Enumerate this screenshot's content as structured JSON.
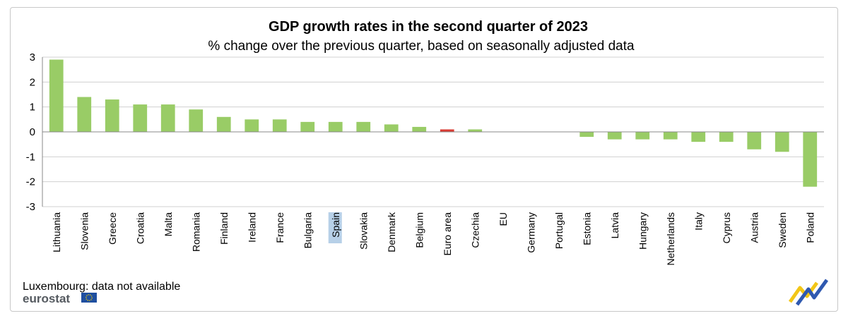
{
  "chart_data": {
    "type": "bar",
    "title": "GDP growth rates in the second quarter of 2023",
    "subtitle": "% change over the previous quarter, based on seasonally adjusted data",
    "xlabel": "",
    "ylabel": "",
    "ylim": [
      -3,
      3
    ],
    "yticks": [
      3,
      2,
      1,
      0,
      -1,
      -2,
      -3
    ],
    "grid": true,
    "legend": "none",
    "categories": [
      "Lithuania",
      "Slovenia",
      "Greece",
      "Croatia",
      "Malta",
      "Romania",
      "Finland",
      "Ireland",
      "France",
      "Bulgaria",
      "Spain",
      "Slovakia",
      "Denmark",
      "Belgium",
      "Euro area",
      "Czechia",
      "EU",
      "Germany",
      "Portugal",
      "Estonia",
      "Latvia",
      "Hungary",
      "Netherlands",
      "Italy",
      "Cyprus",
      "Austria",
      "Sweden",
      "Poland"
    ],
    "values": [
      2.9,
      1.4,
      1.3,
      1.1,
      1.1,
      0.9,
      0.6,
      0.5,
      0.5,
      0.4,
      0.4,
      0.4,
      0.3,
      0.2,
      0.1,
      0.1,
      0.0,
      0.0,
      0.0,
      -0.2,
      -0.3,
      -0.3,
      -0.3,
      -0.4,
      -0.4,
      -0.7,
      -0.8,
      -2.2
    ],
    "highlighted_category": "Euro area",
    "selected_label": "Spain"
  },
  "colors": {
    "bar": "#99cc66",
    "highlight_bar": "#d93b34",
    "grid": "#d0d0d0",
    "axis": "#888888",
    "label_selection": "#b7d0e8"
  },
  "footnote": "Luxembourg: data not available",
  "brand": {
    "wordmark": "eurostat",
    "icons": [
      "eu-flag-icon",
      "eurostat-chevron-logo"
    ]
  }
}
